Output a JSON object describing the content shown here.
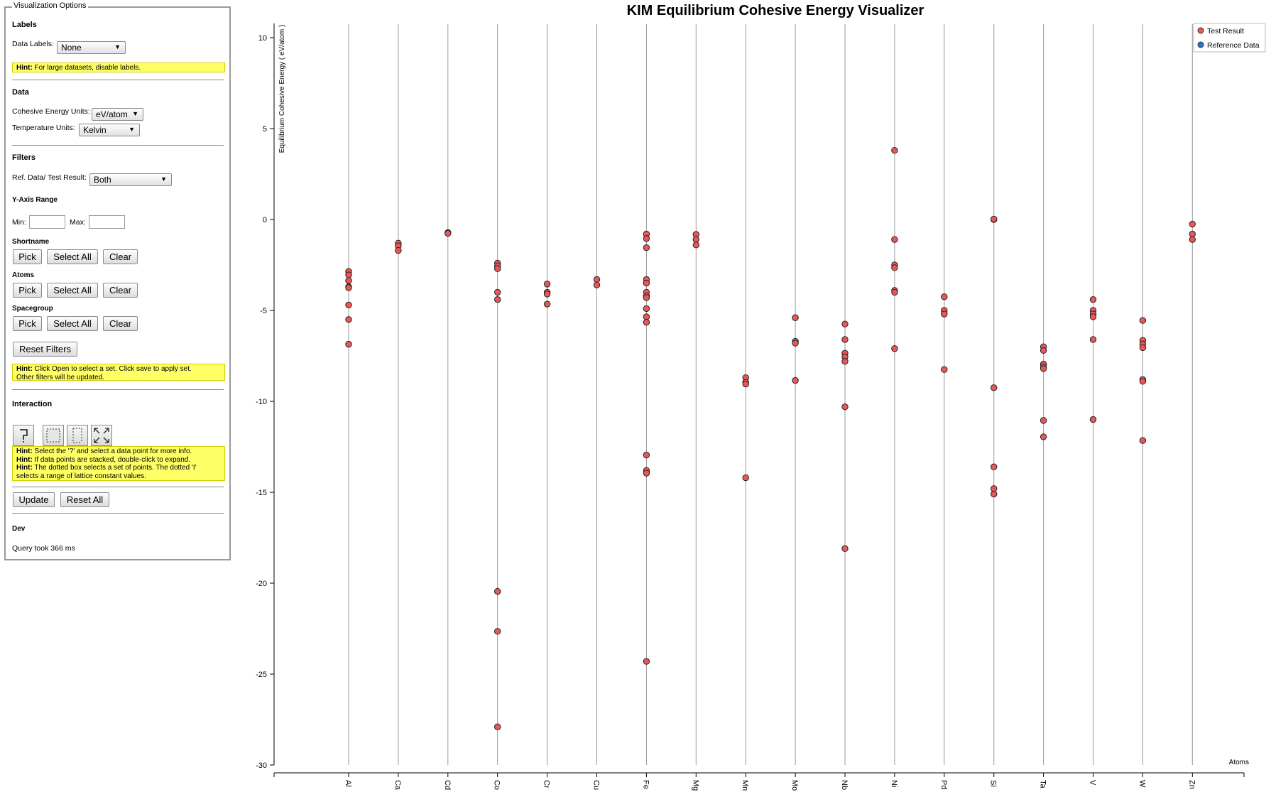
{
  "panel": {
    "title": "Visualization Options",
    "labels_section": "Labels",
    "data_labels_label": "Data Labels:",
    "data_labels_value": "None",
    "hint1_bold": "Hint:",
    "hint1_text": " For large datasets, disable labels.",
    "data_section": "Data",
    "energy_units_label": "Cohesive Energy Units:",
    "energy_units_value": "eV/atom",
    "temp_units_label": "Temperature Units:",
    "temp_units_value": "Kelvin",
    "filters_section": "Filters",
    "ref_label": "Ref. Data/ Test Result:",
    "ref_value": "Both",
    "yrange_section": "Y-Axis Range",
    "min_label": "Min:",
    "max_label": "Max:",
    "shortname_section": "Shortname",
    "atoms_section": "Atoms",
    "spacegroup_section": "Spacegroup",
    "pick": "Pick",
    "select_all": "Select All",
    "clear": "Clear",
    "reset_filters": "Reset Filters",
    "hint2_bold": "Hint:",
    "hint2_line1": " Click Open to select a set. Click save to apply set.",
    "hint2_line2": "Other filters will be updated.",
    "interaction_section": "Interaction",
    "hint3": [
      {
        "bold": "Hint:",
        "text": " Select the '?' and select a data point for more info."
      },
      {
        "bold": "Hint:",
        "text": " If data points are stacked, double-click to expand."
      },
      {
        "bold": "Hint:",
        "text": " The dotted box selects a set of points. The dotted 'I'"
      },
      {
        "bold": "",
        "text": "selects a range of lattice constant values."
      }
    ],
    "update": "Update",
    "reset_all": "Reset All",
    "dev_section": "Dev",
    "query_time": "Query took 366 ms",
    "tools": [
      "question-tool-icon",
      "box-select-icon",
      "range-select-icon",
      "expand-icon"
    ]
  },
  "chart_data": {
    "type": "scatter",
    "title": "KIM Equilibrium Cohesive Energy Visualizer",
    "ylabel": "Equilibrium Cohesive Energy ( eV/atom )",
    "xlabel": "Atoms",
    "ylim": [
      -30,
      10
    ],
    "yticks": [
      10,
      5,
      0,
      -5,
      -10,
      -15,
      -20,
      -25,
      -30
    ],
    "categories": [
      "Al",
      "Ca",
      "Cd",
      "Co",
      "Cr",
      "Cu",
      "Fe",
      "Mg",
      "Mn",
      "Mo",
      "Nb",
      "Ni",
      "Pd",
      "Si",
      "Ta",
      "V",
      "W",
      "Zn"
    ],
    "legend": [
      {
        "name": "Test Result",
        "color": "#e85858"
      },
      {
        "name": "Reference Data",
        "color": "#1f77d4"
      }
    ],
    "legend_position": "top-right",
    "series": [
      {
        "name": "Test Result",
        "color": "#e85858",
        "points": {
          "Al": [
            -2.86,
            -3.05,
            -3.36,
            -3.7,
            -3.75,
            -4.7,
            -5.5,
            -6.86
          ],
          "Ca": [
            -1.3,
            -1.45,
            -1.7
          ],
          "Cd": [
            -0.72,
            -0.76
          ],
          "Co": [
            -2.4,
            -2.55,
            -2.7,
            -4.0,
            -4.4,
            -20.45,
            -22.65,
            -27.9
          ],
          "Cr": [
            -3.55,
            -4.0,
            -4.1,
            -4.65
          ],
          "Cu": [
            -3.3,
            -3.6
          ],
          "Fe": [
            -0.8,
            -1.05,
            -1.55,
            -3.3,
            -3.5,
            -4.0,
            -4.2,
            -4.3,
            -4.9,
            -5.35,
            -5.65,
            -12.95,
            -13.8,
            -13.95,
            -24.3
          ],
          "Mg": [
            -0.82,
            -1.1,
            -1.4
          ],
          "Mn": [
            -8.7,
            -8.95,
            -9.05,
            -14.2
          ],
          "Mo": [
            -5.4,
            -6.7,
            -6.8,
            -8.85
          ],
          "Nb": [
            -5.75,
            -6.6,
            -7.35,
            -7.55,
            -7.8,
            -10.3,
            -18.1
          ],
          "Ni": [
            3.8,
            -1.1,
            -2.5,
            -2.65,
            -3.9,
            -4.0,
            -7.1
          ],
          "Pd": [
            -4.25,
            -5.0,
            -5.2,
            -8.25
          ],
          "Si": [
            0.0,
            0.02,
            -9.25,
            -13.6,
            -14.8,
            -15.1
          ],
          "Ta": [
            -7.0,
            -7.2,
            -7.95,
            -8.1,
            -8.2,
            -11.05,
            -11.95
          ],
          "V": [
            -4.4,
            -5.0,
            -5.2,
            -5.35,
            -6.6,
            -11.0
          ],
          "W": [
            -5.55,
            -6.65,
            -6.85,
            -7.05,
            -8.8,
            -8.9,
            -12.15
          ],
          "Zn": [
            -0.25,
            -0.8,
            -1.1
          ]
        }
      },
      {
        "name": "Reference Data",
        "color": "#1f77d4",
        "points": {}
      }
    ]
  }
}
